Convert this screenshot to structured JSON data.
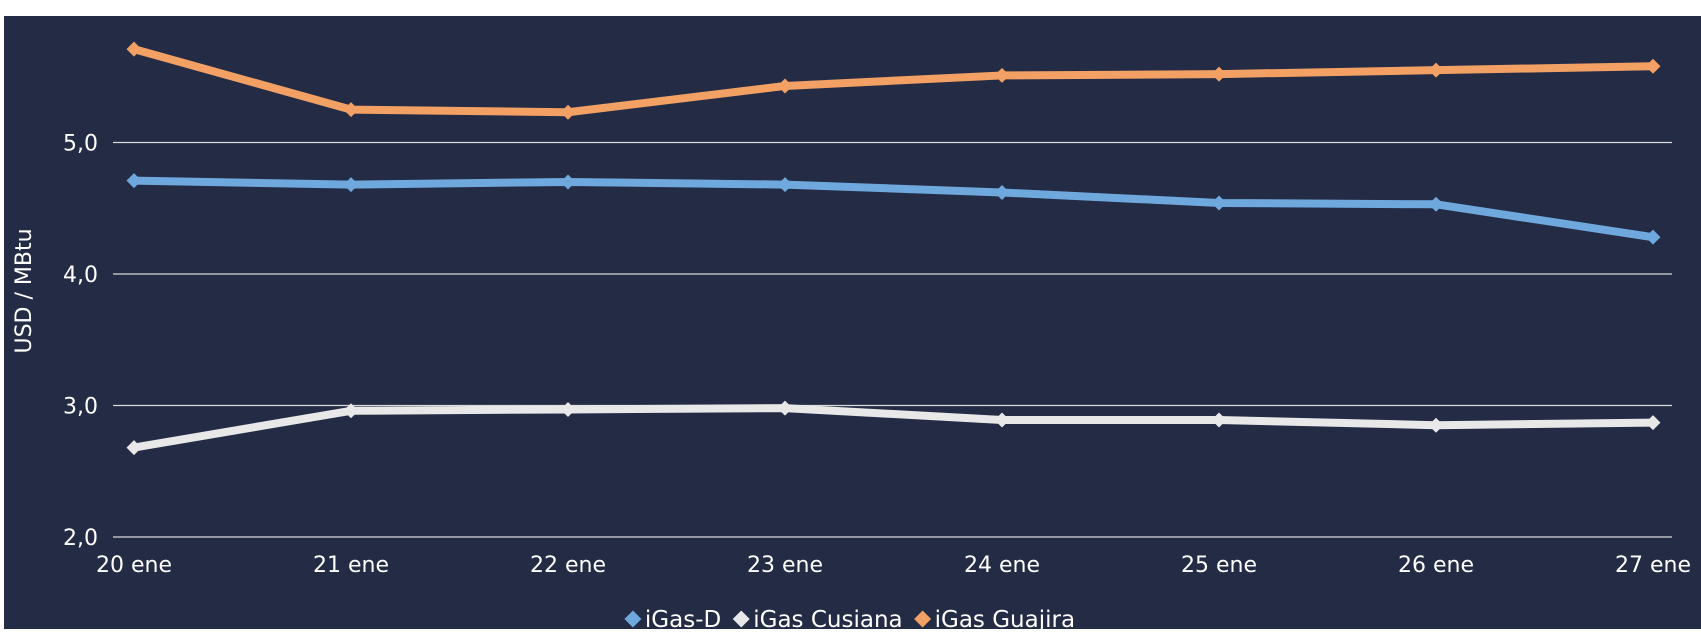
{
  "chart_data": {
    "type": "line",
    "title": "",
    "xlabel": "",
    "ylabel": "USD / MBtu",
    "categories": [
      "20 ene",
      "21 ene",
      "22 ene",
      "23 ene",
      "24 ene",
      "25 ene",
      "26 ene",
      "27 ene"
    ],
    "y_ticks": [
      "2,0",
      "3,0",
      "4,0",
      "5,0"
    ],
    "ylim": [
      2.0,
      5.98
    ],
    "grid": true,
    "legend_position": "bottom",
    "background_color": "#232b45",
    "grid_color": "#d9d9d9",
    "text_color": "#ffffff",
    "series": [
      {
        "name": "iGas-D",
        "color": "#6fa8dc",
        "values": [
          4.71,
          4.68,
          4.7,
          4.68,
          4.62,
          4.54,
          4.53,
          4.28
        ]
      },
      {
        "name": "iGas Cusiana",
        "color": "#e8e8e8",
        "values": [
          2.68,
          2.96,
          2.97,
          2.98,
          2.89,
          2.89,
          2.85,
          2.87
        ]
      },
      {
        "name": "iGas Guajira",
        "color": "#f2a064",
        "values": [
          5.71,
          5.25,
          5.23,
          5.43,
          5.51,
          5.52,
          5.55,
          5.58
        ]
      }
    ]
  }
}
